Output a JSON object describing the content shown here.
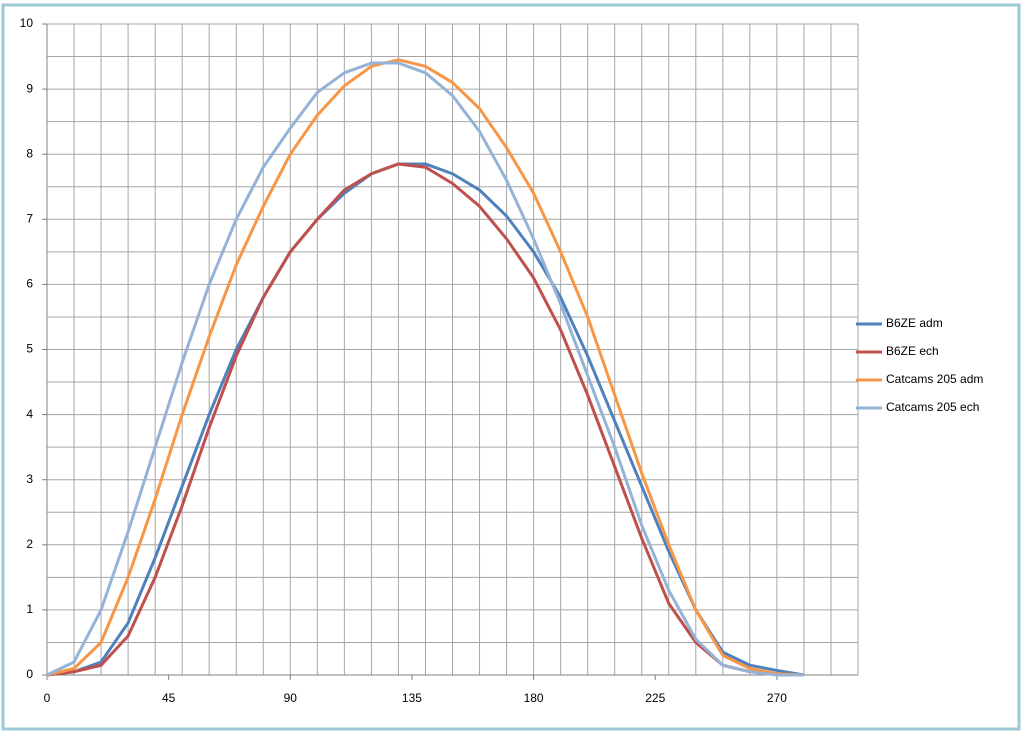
{
  "chart_data": {
    "type": "line",
    "x": [
      0,
      10,
      20,
      30,
      40,
      50,
      60,
      70,
      80,
      90,
      100,
      110,
      120,
      130,
      140,
      150,
      160,
      170,
      180,
      190,
      200,
      210,
      220,
      230,
      240,
      250,
      260,
      270,
      280
    ],
    "series": [
      {
        "name": "B6ZE adm",
        "color": "#4f81bd",
        "values": [
          0,
          0.05,
          0.2,
          0.8,
          1.8,
          2.9,
          4.0,
          5.0,
          5.8,
          6.5,
          7.0,
          7.4,
          7.7,
          7.85,
          7.85,
          7.7,
          7.45,
          7.05,
          6.5,
          5.8,
          4.9,
          3.9,
          2.9,
          1.9,
          1.0,
          0.35,
          0.15,
          0.07,
          0
        ]
      },
      {
        "name": "B6ZE ech",
        "color": "#c0504d",
        "values": [
          0,
          0.05,
          0.15,
          0.6,
          1.5,
          2.6,
          3.8,
          4.9,
          5.8,
          6.5,
          7.0,
          7.45,
          7.7,
          7.85,
          7.8,
          7.55,
          7.2,
          6.7,
          6.1,
          5.3,
          4.3,
          3.2,
          2.1,
          1.1,
          0.5,
          0.15,
          0.05,
          0.02,
          0
        ]
      },
      {
        "name": "Catcams 205 adm",
        "color": "#f79646",
        "values": [
          0,
          0.1,
          0.5,
          1.5,
          2.7,
          4.0,
          5.2,
          6.3,
          7.2,
          8.0,
          8.6,
          9.05,
          9.35,
          9.45,
          9.35,
          9.1,
          8.7,
          8.1,
          7.4,
          6.5,
          5.5,
          4.3,
          3.1,
          2.0,
          1.0,
          0.3,
          0.1,
          0.02,
          0
        ]
      },
      {
        "name": "Catcams 205 ech",
        "color": "#95b3d7",
        "values": [
          0,
          0.2,
          1.0,
          2.2,
          3.5,
          4.8,
          6.0,
          7.0,
          7.8,
          8.4,
          8.95,
          9.25,
          9.4,
          9.4,
          9.25,
          8.9,
          8.35,
          7.6,
          6.7,
          5.7,
          4.6,
          3.5,
          2.3,
          1.3,
          0.55,
          0.15,
          0.05,
          0,
          0
        ]
      }
    ],
    "xlim": [
      0,
      300
    ],
    "xticks": [
      0,
      45,
      90,
      135,
      180,
      225,
      270
    ],
    "ylim": [
      0,
      10
    ],
    "yticks": [
      0,
      1,
      2,
      3,
      4,
      5,
      6,
      7,
      8,
      9,
      10
    ],
    "xgrid": [
      0,
      10,
      20,
      30,
      40,
      50,
      60,
      70,
      80,
      90,
      100,
      110,
      120,
      130,
      140,
      150,
      160,
      170,
      180,
      190,
      200,
      210,
      220,
      230,
      240,
      250,
      260,
      270,
      280,
      290,
      300
    ],
    "ygrid": [
      0,
      0.5,
      1,
      1.5,
      2,
      2.5,
      3,
      3.5,
      4,
      4.5,
      5,
      5.5,
      6,
      6.5,
      7,
      7.5,
      8,
      8.5,
      9,
      9.5,
      10
    ],
    "legend": "right"
  }
}
